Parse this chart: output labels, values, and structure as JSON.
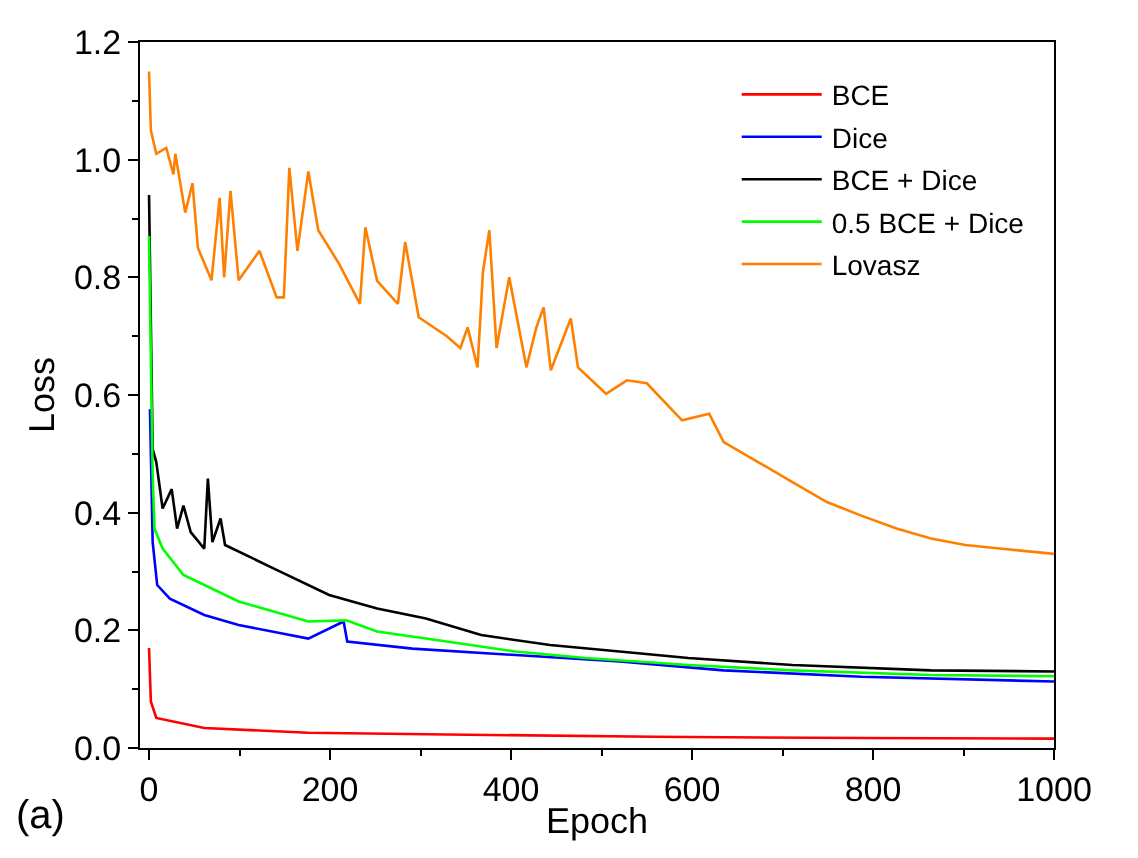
{
  "chart_data": {
    "type": "line",
    "xlabel": "Epoch",
    "ylabel": "Loss",
    "annotations": [
      "(a)"
    ],
    "xlim": [
      -10,
      1000
    ],
    "xticks": [
      0,
      200,
      400,
      600,
      800,
      1000
    ],
    "ylim": [
      0,
      1.2
    ],
    "yticks": [
      {
        "value": 0,
        "label": "0.0"
      },
      {
        "value": 0.2,
        "label": "0.2"
      },
      {
        "value": 0.4,
        "label": "0.4"
      },
      {
        "value": 0.6,
        "label": "0.6"
      },
      {
        "value": 0.8,
        "label": "0.8"
      },
      {
        "value": 1.0,
        "label": "1.0"
      },
      {
        "value": 1.2,
        "label": "1.2"
      }
    ],
    "legend": "top right",
    "marker": "none",
    "line_style": "solid",
    "series": [
      {
        "name": "BCE",
        "color": "#ff0000",
        "x": [
          0,
          2,
          8,
          61,
          176,
          329,
          558,
          787,
          1000
        ],
        "values": [
          0.17,
          0.079,
          0.051,
          0.034,
          0.026,
          0.023,
          0.019,
          0.017,
          0.016
        ]
      },
      {
        "name": "Dice",
        "color": "#0000ff",
        "x": [
          1,
          4,
          9,
          23,
          61,
          99,
          176,
          215,
          219,
          291,
          405,
          520,
          635,
          787,
          1000
        ],
        "values": [
          0.576,
          0.35,
          0.277,
          0.254,
          0.226,
          0.209,
          0.186,
          0.215,
          0.181,
          0.169,
          0.158,
          0.147,
          0.132,
          0.121,
          0.113
        ]
      },
      {
        "name": "BCE + Dice",
        "color": "#000000",
        "x": [
          0,
          4,
          8,
          15,
          25,
          31,
          38,
          46,
          61,
          65,
          70,
          79,
          84,
          138,
          199,
          252,
          306,
          367,
          443,
          520,
          596,
          711,
          864,
          1000
        ],
        "values": [
          0.94,
          0.508,
          0.486,
          0.407,
          0.44,
          0.373,
          0.412,
          0.367,
          0.339,
          0.458,
          0.35,
          0.39,
          0.345,
          0.305,
          0.26,
          0.237,
          0.22,
          0.192,
          0.175,
          0.164,
          0.153,
          0.141,
          0.132,
          0.13
        ]
      },
      {
        "name": "0.5 BCE + Dice",
        "color": "#00ff00",
        "x": [
          0,
          4,
          6,
          15,
          38,
          99,
          176,
          218,
          252,
          329,
          405,
          482,
          596,
          711,
          864,
          1000
        ],
        "values": [
          0.87,
          0.463,
          0.373,
          0.339,
          0.294,
          0.249,
          0.215,
          0.217,
          0.198,
          0.181,
          0.164,
          0.153,
          0.141,
          0.132,
          0.124,
          0.122
        ]
      },
      {
        "name": "Lovasz",
        "color": "#ff8000",
        "x": [
          0,
          2,
          8,
          19,
          27,
          29,
          40,
          48,
          54,
          69,
          78,
          83,
          90,
          99,
          122,
          141,
          149,
          155,
          164,
          176,
          187,
          210,
          233,
          239,
          252,
          275,
          283,
          298,
          329,
          344,
          352,
          363,
          369,
          376,
          384,
          398,
          417,
          428,
          436,
          444,
          466,
          474,
          505,
          528,
          550,
          589,
          619,
          635,
          673,
          711,
          749,
          787,
          826,
          864,
          902,
          940,
          1000
        ],
        "values": [
          1.15,
          1.05,
          1.01,
          1.02,
          0.975,
          1.01,
          0.91,
          0.96,
          0.85,
          0.795,
          0.935,
          0.8,
          0.947,
          0.795,
          0.845,
          0.766,
          0.766,
          0.986,
          0.845,
          0.98,
          0.88,
          0.823,
          0.755,
          0.885,
          0.794,
          0.755,
          0.86,
          0.732,
          0.7,
          0.68,
          0.715,
          0.647,
          0.81,
          0.88,
          0.68,
          0.8,
          0.647,
          0.715,
          0.749,
          0.642,
          0.73,
          0.647,
          0.602,
          0.625,
          0.62,
          0.557,
          0.568,
          0.52,
          0.486,
          0.452,
          0.418,
          0.395,
          0.373,
          0.356,
          0.345,
          0.339,
          0.33
        ]
      }
    ]
  }
}
